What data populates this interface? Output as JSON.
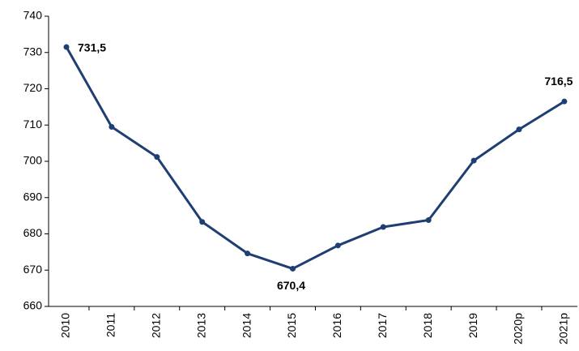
{
  "chart_data": {
    "type": "line",
    "categories": [
      "2010",
      "2011",
      "2012",
      "2013",
      "2014",
      "2015",
      "2016",
      "2017",
      "2018",
      "2019",
      "2020p",
      "2021p"
    ],
    "series": [
      {
        "name": null,
        "color": "#1f3f73",
        "values": [
          731.5,
          709.5,
          701.2,
          683.3,
          674.6,
          670.4,
          676.8,
          681.9,
          683.8,
          700.2,
          708.8,
          716.5
        ],
        "value_labels": [
          "731,5",
          null,
          null,
          null,
          null,
          "670,4",
          null,
          null,
          null,
          null,
          null,
          "716,5"
        ]
      }
    ],
    "ylim": [
      660,
      740
    ],
    "yticks": [
      660,
      670,
      680,
      690,
      700,
      710,
      720,
      730,
      740
    ],
    "grid": false
  }
}
